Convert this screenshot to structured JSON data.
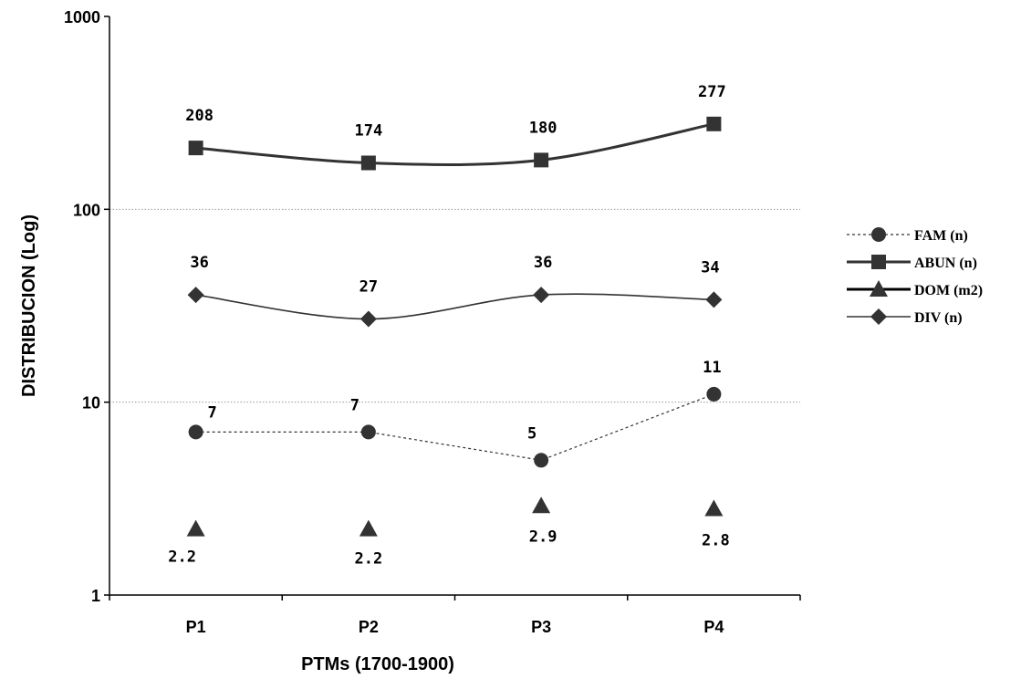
{
  "chart_data": {
    "type": "line",
    "title": "",
    "xlabel": "PTMs (1700-1900)",
    "ylabel": "DISTRIBUCION (Log)",
    "yscale": "log",
    "ylim": [
      1,
      1000
    ],
    "yticks": [
      "1",
      "10",
      "100",
      "1000"
    ],
    "categories": [
      "P1",
      "P2",
      "P3",
      "P4"
    ],
    "grid": "horizontal dotted",
    "legend_position": "right",
    "series": [
      {
        "name": "FAM (n)",
        "values": [
          7,
          7,
          5,
          11
        ],
        "marker": "circle",
        "line": "dotted",
        "color": "#333333",
        "labels": [
          "7",
          "7",
          "5",
          "11"
        ]
      },
      {
        "name": "ABUN (n)",
        "values": [
          208,
          174,
          180,
          277
        ],
        "marker": "square",
        "line": "thick",
        "color": "#333333",
        "labels": [
          "208",
          "174",
          "180",
          "277"
        ]
      },
      {
        "name": "DOM (m2)",
        "values": [
          2.2,
          2.2,
          2.9,
          2.8
        ],
        "marker": "triangle",
        "line": "none",
        "color": "#333333",
        "labels": [
          "2.2",
          "2.2",
          "2.9",
          "2.8"
        ]
      },
      {
        "name": "DIV (n)",
        "values": [
          36,
          27,
          36,
          34
        ],
        "marker": "diamond",
        "line": "thin",
        "color": "#333333",
        "labels": [
          "36",
          "27",
          "36",
          "34"
        ]
      }
    ]
  }
}
